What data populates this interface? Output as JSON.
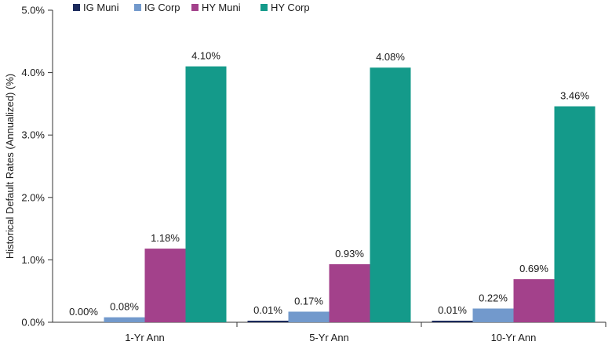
{
  "chart_data": {
    "type": "bar",
    "title": "",
    "xlabel": "",
    "ylabel": "Historical Default Rates (Annualized) (%)",
    "ylim": [
      0,
      5
    ],
    "yticks": [
      "0.0%",
      "1.0%",
      "2.0%",
      "3.0%",
      "4.0%",
      "5.0%"
    ],
    "categories": [
      "1-Yr Ann",
      "5-Yr Ann",
      "10-Yr Ann"
    ],
    "legend_position": "top",
    "series": [
      {
        "name": "IG Muni",
        "color": "#1b2a5c",
        "values": [
          0.0,
          0.01,
          0.01
        ],
        "labels": [
          "0.00%",
          "0.01%",
          "0.01%"
        ]
      },
      {
        "name": "IG Corp",
        "color": "#7299cc",
        "values": [
          0.08,
          0.17,
          0.22
        ],
        "labels": [
          "0.08%",
          "0.17%",
          "0.22%"
        ]
      },
      {
        "name": "HY Muni",
        "color": "#a3418b",
        "values": [
          1.18,
          0.93,
          0.69
        ],
        "labels": [
          "1.18%",
          "0.93%",
          "0.69%"
        ]
      },
      {
        "name": "HY Corp",
        "color": "#149a8a",
        "values": [
          4.1,
          4.08,
          3.46
        ],
        "labels": [
          "4.10%",
          "4.08%",
          "3.46%"
        ]
      }
    ]
  }
}
